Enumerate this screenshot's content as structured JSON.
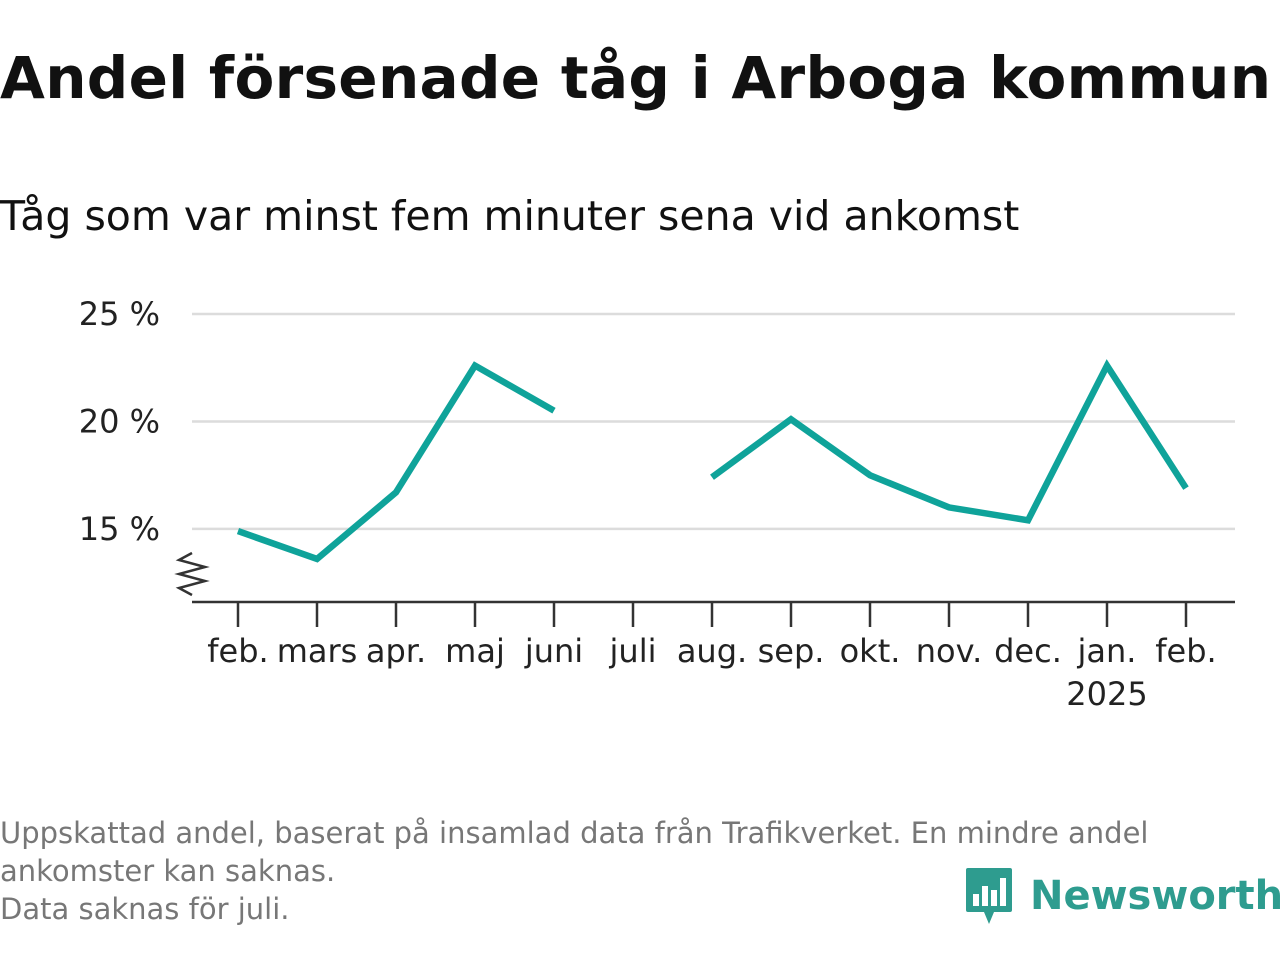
{
  "title": "Andel försenade tåg i Arboga kommun",
  "subtitle": "Tåg som var minst fem minuter sena vid ankomst",
  "footnote": {
    "line1": "Uppskattad andel, baserat på insamlad data från Trafikverket. En mindre andel",
    "line2": "ankomster kan saknas.",
    "line3": "Data saknas för juli."
  },
  "brand": {
    "name": "Newsworthy",
    "icon": "bar-chart-speech-bubble-icon",
    "color": "#2e9c8f"
  },
  "chart_data": {
    "type": "line",
    "x_labels": [
      "feb.",
      "mars",
      "apr.",
      "maj",
      "juni",
      "juli",
      "aug.",
      "sep.",
      "okt.",
      "nov.",
      "dec.",
      "jan.",
      "feb."
    ],
    "year_label": "2025",
    "year_label_index": 11,
    "series": [
      {
        "color": "#0fa39a",
        "values": [
          14.9,
          13.6,
          16.7,
          22.6,
          20.5,
          null,
          17.4,
          20.1,
          17.5,
          16.0,
          15.4,
          22.6,
          16.9
        ]
      }
    ],
    "y_ticks": [
      15,
      20,
      25
    ],
    "y_tick_labels": [
      "15 %",
      "20 %",
      "25 %"
    ],
    "ylim": [
      11.6,
      25
    ],
    "y_axis_break": true,
    "grid": true,
    "xlabel": "",
    "ylabel": ""
  }
}
